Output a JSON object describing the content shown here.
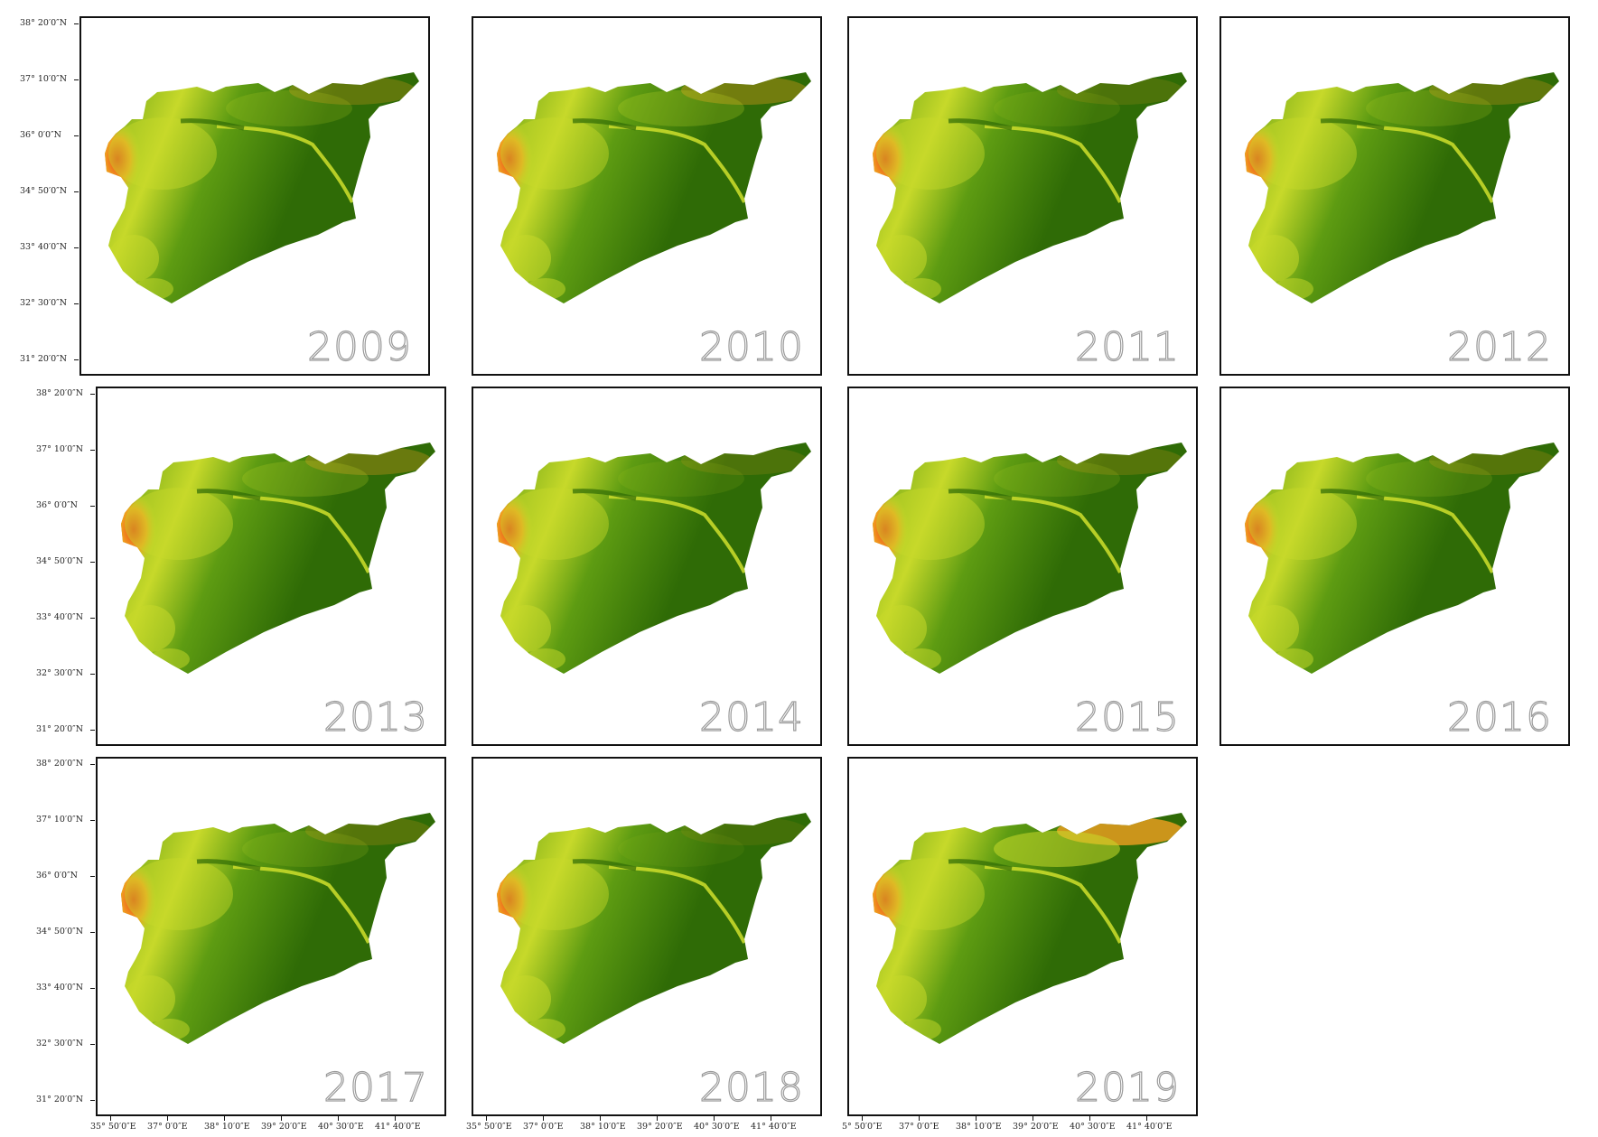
{
  "lat_labels": [
    "38° 20′0″N",
    "37° 10′0″N",
    "36° 0′0″N",
    "34° 50′0″N",
    "33° 40′0″N",
    "32° 30′0″N",
    "31° 20′0″N"
  ],
  "lon_labels": [
    "35° 50′0″E",
    "37° 0′0″E",
    "38° 10′0″E",
    "39° 20′0″E",
    "40° 30′0″E",
    "41° 40′0″E"
  ],
  "lon_labels_cut": [
    "5° 50′0″E",
    "37° 0′0″E",
    "38° 10′0″E",
    "39° 20′0″E",
    "40° 30′0″E",
    "41° 40′0″E"
  ],
  "panels": [
    {
      "year": "2009",
      "dry": 0.25
    },
    {
      "year": "2010",
      "dry": 0.35
    },
    {
      "year": "2011",
      "dry": 0.15
    },
    {
      "year": "2012",
      "dry": 0.25
    },
    {
      "year": "2013",
      "dry": 0.3
    },
    {
      "year": "2014",
      "dry": 0.15
    },
    {
      "year": "2015",
      "dry": 0.2
    },
    {
      "year": "2016",
      "dry": 0.2
    },
    {
      "year": "2017",
      "dry": 0.2
    },
    {
      "year": "2018",
      "dry": 0.1
    },
    {
      "year": "2019",
      "dry": 0.8
    }
  ],
  "colors": {
    "vegetation_dark": "#2f6b06",
    "vegetation_mid": "#5e9c12",
    "sparse": "#c7d92a",
    "bare": "#f2a020",
    "barren": "#e8401a"
  }
}
